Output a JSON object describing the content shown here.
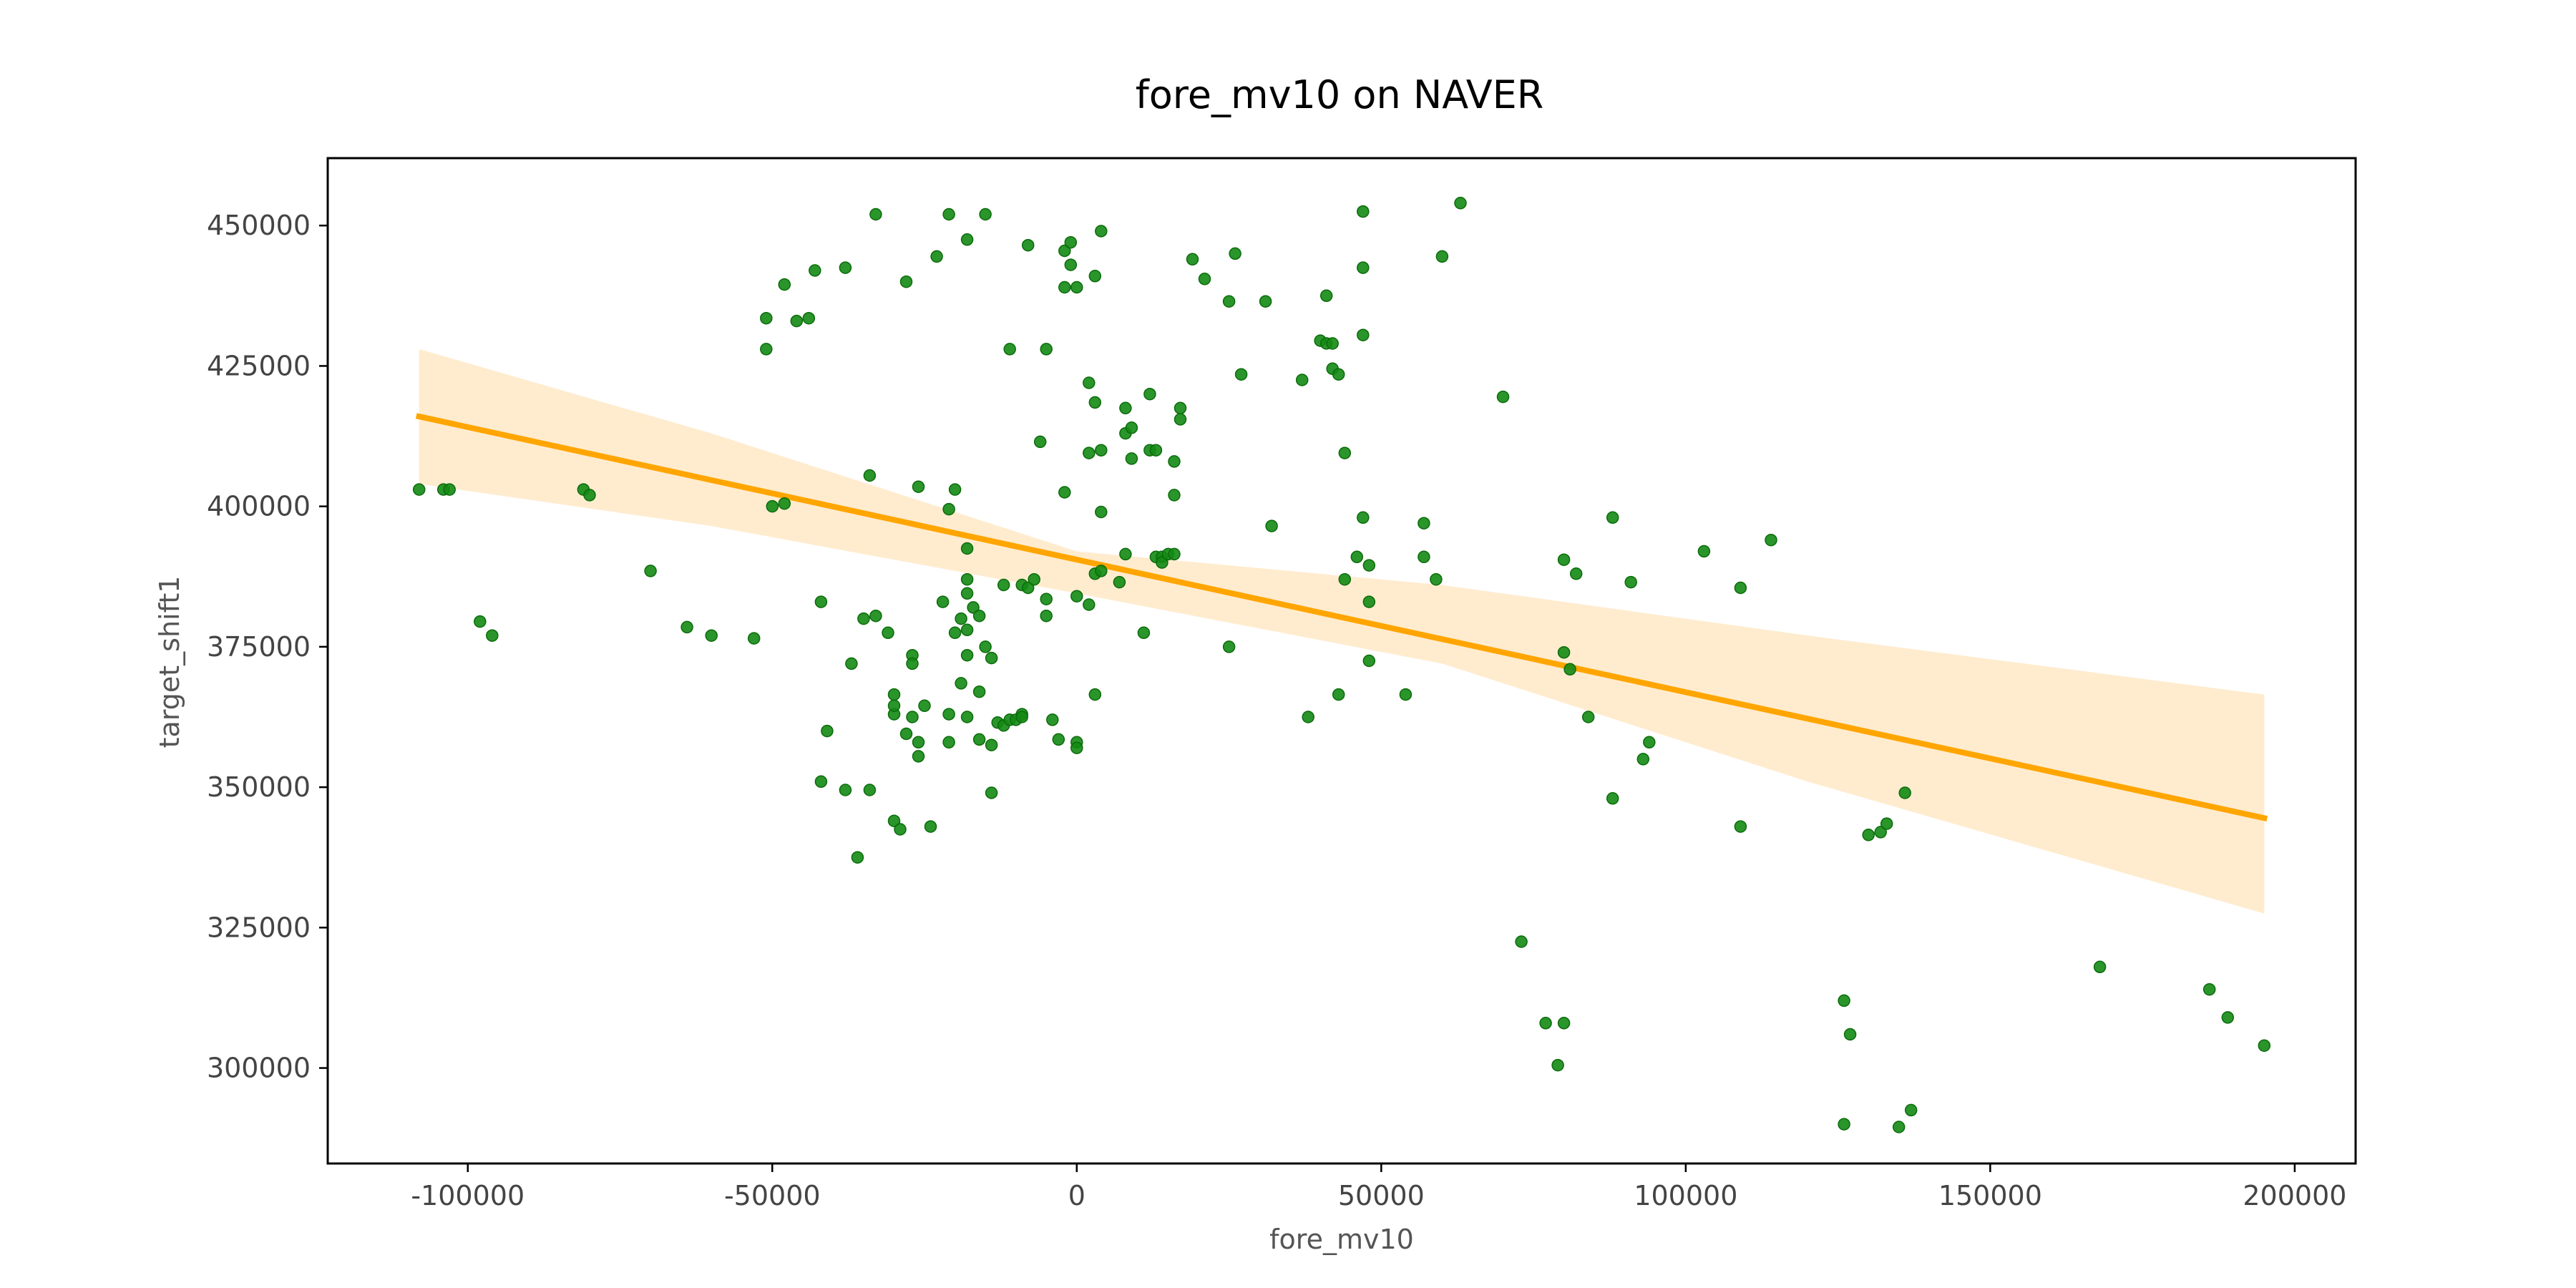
{
  "chart_data": {
    "type": "scatter",
    "title": "fore_mv10 on NAVER",
    "xlabel": "fore_mv10",
    "ylabel": "target_shift1",
    "xlim": [
      -123000,
      210000
    ],
    "ylim": [
      283000,
      462000
    ],
    "xticks": [
      -100000,
      -50000,
      0,
      50000,
      100000,
      150000,
      200000
    ],
    "xtick_labels": [
      "-100000",
      "-50000",
      "0",
      "50000",
      "100000",
      "150000",
      "200000"
    ],
    "yticks": [
      300000,
      325000,
      350000,
      375000,
      400000,
      425000,
      450000
    ],
    "ytick_labels": [
      "300000",
      "325000",
      "350000",
      "375000",
      "400000",
      "425000",
      "450000"
    ],
    "grid": false,
    "colors": {
      "points": "#138a13",
      "regression_line": "#ffa500",
      "confidence_band": "#ffe9c7"
    },
    "series": [
      {
        "type": "scatter",
        "points": [
          [
            -108000,
            403000
          ],
          [
            -104000,
            403000
          ],
          [
            -103000,
            403000
          ],
          [
            -98000,
            379500
          ],
          [
            -96000,
            377000
          ],
          [
            -81000,
            403000
          ],
          [
            -80000,
            402000
          ],
          [
            -70000,
            388500
          ],
          [
            -64000,
            378500
          ],
          [
            -60000,
            377000
          ],
          [
            -53000,
            376500
          ],
          [
            -51000,
            433500
          ],
          [
            -51000,
            428000
          ],
          [
            -50000,
            400000
          ],
          [
            -48000,
            400500
          ],
          [
            -48000,
            439500
          ],
          [
            -46000,
            433000
          ],
          [
            -44000,
            433500
          ],
          [
            -43000,
            442000
          ],
          [
            -42000,
            351000
          ],
          [
            -42000,
            383000
          ],
          [
            -41000,
            360000
          ],
          [
            -38000,
            442500
          ],
          [
            -38000,
            349500
          ],
          [
            -37000,
            372000
          ],
          [
            -36000,
            337500
          ],
          [
            -35000,
            380000
          ],
          [
            -34000,
            405500
          ],
          [
            -33000,
            452000
          ],
          [
            -33000,
            380500
          ],
          [
            -34000,
            349500
          ],
          [
            -31000,
            377500
          ],
          [
            -30000,
            363000
          ],
          [
            -30000,
            366500
          ],
          [
            -30000,
            364500
          ],
          [
            -30000,
            344000
          ],
          [
            -29000,
            342500
          ],
          [
            -28000,
            440000
          ],
          [
            -28000,
            359500
          ],
          [
            -27000,
            373500
          ],
          [
            -27000,
            372000
          ],
          [
            -26000,
            358000
          ],
          [
            -26000,
            355500
          ],
          [
            -27000,
            362500
          ],
          [
            -26000,
            403500
          ],
          [
            -25000,
            364500
          ],
          [
            -24000,
            343000
          ],
          [
            -23000,
            444500
          ],
          [
            -22000,
            383000
          ],
          [
            -21000,
            452000
          ],
          [
            -21000,
            399500
          ],
          [
            -21000,
            363000
          ],
          [
            -21000,
            358000
          ],
          [
            -20000,
            377500
          ],
          [
            -20000,
            403000
          ],
          [
            -19000,
            368500
          ],
          [
            -19000,
            380000
          ],
          [
            -18000,
            447500
          ],
          [
            -18000,
            378000
          ],
          [
            -18000,
            373500
          ],
          [
            -18000,
            362500
          ],
          [
            -18000,
            392500
          ],
          [
            -18000,
            387000
          ],
          [
            -18000,
            384500
          ],
          [
            -17000,
            382000
          ],
          [
            -16000,
            380500
          ],
          [
            -16000,
            367000
          ],
          [
            -16000,
            358500
          ],
          [
            -15000,
            452000
          ],
          [
            -15000,
            375000
          ],
          [
            -14000,
            373000
          ],
          [
            -14000,
            349000
          ],
          [
            -14000,
            357500
          ],
          [
            -13000,
            361500
          ],
          [
            -12000,
            386000
          ],
          [
            -12000,
            361000
          ],
          [
            -11000,
            428000
          ],
          [
            -11000,
            362000
          ],
          [
            -10000,
            362000
          ],
          [
            -9000,
            363000
          ],
          [
            -9000,
            362500
          ],
          [
            -9000,
            386000
          ],
          [
            -8000,
            446500
          ],
          [
            -8000,
            385500
          ],
          [
            -7000,
            387000
          ],
          [
            -6000,
            411500
          ],
          [
            -5000,
            428000
          ],
          [
            -5000,
            383500
          ],
          [
            -5000,
            380500
          ],
          [
            -4000,
            362000
          ],
          [
            -3000,
            358500
          ],
          [
            -2000,
            445500
          ],
          [
            -2000,
            439000
          ],
          [
            -2000,
            402500
          ],
          [
            -1000,
            447000
          ],
          [
            -1000,
            443000
          ],
          [
            0,
            439000
          ],
          [
            0,
            384000
          ],
          [
            0,
            358000
          ],
          [
            0,
            357000
          ],
          [
            2000,
            409500
          ],
          [
            2000,
            382500
          ],
          [
            2000,
            422000
          ],
          [
            3000,
            366500
          ],
          [
            3000,
            388000
          ],
          [
            3000,
            418500
          ],
          [
            3000,
            441000
          ],
          [
            4000,
            410000
          ],
          [
            4000,
            449000
          ],
          [
            4000,
            399000
          ],
          [
            4000,
            388500
          ],
          [
            7000,
            386500
          ],
          [
            8000,
            413000
          ],
          [
            8000,
            417500
          ],
          [
            8000,
            391500
          ],
          [
            9000,
            408500
          ],
          [
            9000,
            414000
          ],
          [
            11000,
            377500
          ],
          [
            12000,
            420000
          ],
          [
            12000,
            410000
          ],
          [
            13000,
            391000
          ],
          [
            13000,
            410000
          ],
          [
            14000,
            391000
          ],
          [
            14000,
            390000
          ],
          [
            15000,
            391500
          ],
          [
            16000,
            391500
          ],
          [
            16000,
            408000
          ],
          [
            16000,
            402000
          ],
          [
            17000,
            417500
          ],
          [
            17000,
            415500
          ],
          [
            19000,
            444000
          ],
          [
            21000,
            440500
          ],
          [
            25000,
            436500
          ],
          [
            25000,
            375000
          ],
          [
            26000,
            445000
          ],
          [
            27000,
            423500
          ],
          [
            31000,
            436500
          ],
          [
            32000,
            396500
          ],
          [
            37000,
            422500
          ],
          [
            38000,
            362500
          ],
          [
            40000,
            429500
          ],
          [
            41000,
            429000
          ],
          [
            41000,
            437500
          ],
          [
            42000,
            429000
          ],
          [
            42000,
            424500
          ],
          [
            43000,
            423500
          ],
          [
            43000,
            366500
          ],
          [
            44000,
            409500
          ],
          [
            44000,
            387000
          ],
          [
            46000,
            391000
          ],
          [
            47000,
            398000
          ],
          [
            47000,
            452500
          ],
          [
            47000,
            442500
          ],
          [
            47000,
            430500
          ],
          [
            48000,
            389500
          ],
          [
            48000,
            372500
          ],
          [
            48000,
            383000
          ],
          [
            54000,
            366500
          ],
          [
            57000,
            397000
          ],
          [
            57000,
            391000
          ],
          [
            59000,
            387000
          ],
          [
            60000,
            444500
          ],
          [
            63000,
            454000
          ],
          [
            70000,
            419500
          ],
          [
            73000,
            322500
          ],
          [
            77000,
            308000
          ],
          [
            79000,
            300500
          ],
          [
            80000,
            308000
          ],
          [
            80000,
            390500
          ],
          [
            80000,
            374000
          ],
          [
            81000,
            371000
          ],
          [
            82000,
            388000
          ],
          [
            84000,
            362500
          ],
          [
            88000,
            398000
          ],
          [
            88000,
            348000
          ],
          [
            91000,
            386500
          ],
          [
            93000,
            355000
          ],
          [
            94000,
            358000
          ],
          [
            103000,
            392000
          ],
          [
            109000,
            385500
          ],
          [
            109000,
            343000
          ],
          [
            114000,
            394000
          ],
          [
            126000,
            312000
          ],
          [
            126000,
            290000
          ],
          [
            127000,
            306000
          ],
          [
            130000,
            341500
          ],
          [
            132000,
            342000
          ],
          [
            133000,
            343500
          ],
          [
            135000,
            289500
          ],
          [
            136000,
            349000
          ],
          [
            137000,
            292500
          ],
          [
            168000,
            318000
          ],
          [
            186000,
            314000
          ],
          [
            189000,
            309000
          ],
          [
            195000,
            304000
          ]
        ]
      },
      {
        "type": "regression",
        "line": [
          [
            -108000,
            416000
          ],
          [
            195000,
            344500
          ]
        ],
        "band_upper": [
          [
            -108000,
            428000
          ],
          [
            -60000,
            413000
          ],
          [
            0,
            392000
          ],
          [
            60000,
            386000
          ],
          [
            120000,
            377000
          ],
          [
            195000,
            366500
          ]
        ],
        "band_lower": [
          [
            -108000,
            404000
          ],
          [
            -60000,
            396500
          ],
          [
            0,
            384500
          ],
          [
            60000,
            372000
          ],
          [
            120000,
            351000
          ],
          [
            195000,
            327500
          ]
        ]
      }
    ]
  }
}
